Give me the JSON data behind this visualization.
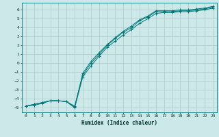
{
  "xlabel": "Humidex (Indice chaleur)",
  "ylabel": "",
  "bg_color": "#cce8e8",
  "grid_color": "#aacccc",
  "line_color": "#007777",
  "xlim": [
    -0.5,
    23.5
  ],
  "ylim": [
    -5.5,
    6.8
  ],
  "xticks": [
    0,
    1,
    2,
    3,
    4,
    5,
    6,
    7,
    8,
    9,
    10,
    11,
    12,
    13,
    14,
    15,
    16,
    17,
    18,
    19,
    20,
    21,
    22,
    23
  ],
  "yticks": [
    -5,
    -4,
    -3,
    -2,
    -1,
    0,
    1,
    2,
    3,
    4,
    5,
    6
  ],
  "line1_x": [
    0,
    1,
    2,
    3,
    4,
    5,
    6,
    7,
    8,
    9,
    10,
    11,
    12,
    13,
    14,
    15,
    16,
    17,
    18,
    19,
    20,
    21,
    22,
    23
  ],
  "line1_y": [
    -4.8,
    -4.6,
    -4.4,
    -4.2,
    -4.2,
    -4.3,
    -4.8,
    -1.3,
    0.0,
    1.0,
    2.0,
    2.8,
    3.5,
    4.0,
    4.8,
    5.2,
    5.8,
    5.8,
    5.8,
    5.9,
    5.9,
    6.0,
    6.1,
    6.3
  ],
  "line2_x": [
    0,
    1,
    2,
    3,
    4,
    5,
    6,
    7,
    8,
    9,
    10,
    11,
    12,
    13,
    14,
    15,
    16,
    17,
    18,
    19,
    20,
    21,
    22,
    23
  ],
  "line2_y": [
    -4.8,
    -4.6,
    -4.4,
    -4.2,
    -4.2,
    -4.3,
    -5.0,
    -1.5,
    -0.3,
    0.8,
    1.8,
    2.5,
    3.2,
    3.8,
    4.5,
    5.0,
    5.6,
    5.7,
    5.7,
    5.8,
    5.8,
    5.9,
    6.0,
    6.2
  ],
  "line3_x": [
    0,
    1,
    2,
    3,
    4,
    5,
    6,
    7,
    8,
    9,
    10,
    11,
    12,
    13,
    14,
    15,
    16,
    17,
    18,
    19,
    20,
    21,
    22,
    23
  ],
  "line3_y": [
    -4.8,
    -4.7,
    -4.5,
    -4.2,
    -4.2,
    -4.3,
    -4.9,
    -1.1,
    0.2,
    1.2,
    2.1,
    2.9,
    3.6,
    4.2,
    4.9,
    5.3,
    5.9,
    5.9,
    5.9,
    6.0,
    6.0,
    6.1,
    6.2,
    6.4
  ]
}
